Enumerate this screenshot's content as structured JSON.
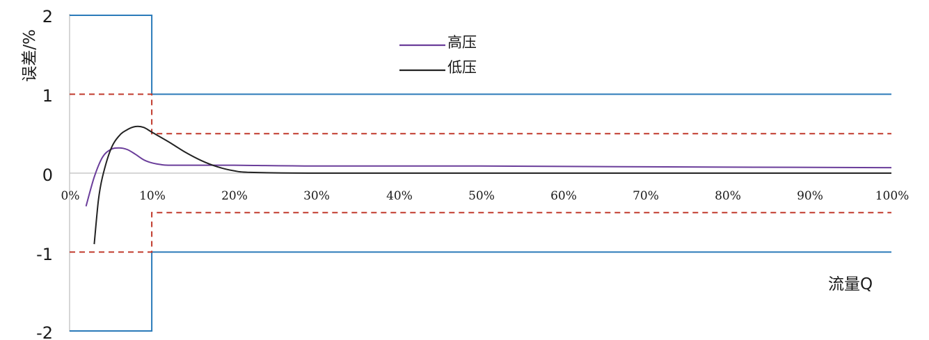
{
  "chart_data": {
    "type": "line",
    "title": "",
    "xlabel": "流量Q",
    "ylabel": "误差/%",
    "xlim": [
      0,
      100
    ],
    "ylim": [
      -2,
      2
    ],
    "x_ticks": [
      "0%",
      "10%",
      "20%",
      "30%",
      "40%",
      "50%",
      "60%",
      "70%",
      "80%",
      "90%",
      "100%"
    ],
    "y_ticks": [
      "2",
      "1",
      "0",
      "-1",
      "-2"
    ],
    "legend": {
      "position": "top-center",
      "entries": [
        {
          "name": "高压",
          "color": "#6a3d9a"
        },
        {
          "name": "低压",
          "color": "#222222"
        }
      ]
    },
    "series": [
      {
        "name": "高压",
        "color": "#6a3d9a",
        "x": [
          2,
          3,
          4,
          5,
          6,
          7,
          8,
          9,
          10,
          11,
          12,
          15,
          20,
          30,
          50,
          70,
          100
        ],
        "y": [
          -0.42,
          -0.05,
          0.2,
          0.3,
          0.32,
          0.3,
          0.24,
          0.17,
          0.13,
          0.11,
          0.1,
          0.1,
          0.1,
          0.09,
          0.09,
          0.08,
          0.07
        ]
      },
      {
        "name": "低压",
        "color": "#222222",
        "x": [
          3,
          3.5,
          4,
          5,
          6,
          7,
          8,
          9,
          10,
          12,
          14,
          16,
          18,
          20,
          22,
          30,
          50,
          100
        ],
        "y": [
          -0.9,
          -0.35,
          -0.05,
          0.3,
          0.47,
          0.55,
          0.59,
          0.58,
          0.52,
          0.4,
          0.27,
          0.16,
          0.08,
          0.03,
          0.01,
          0.0,
          0.0,
          0.0
        ]
      }
    ],
    "limits": [
      {
        "style": "solid",
        "color": "#2a7ab9",
        "x": [
          0,
          10,
          10,
          100
        ],
        "y": [
          2,
          2,
          1,
          1
        ]
      },
      {
        "style": "solid",
        "color": "#2a7ab9",
        "x": [
          0,
          10,
          10,
          100
        ],
        "y": [
          -2,
          -2,
          -1,
          -1
        ]
      },
      {
        "style": "dashed",
        "color": "#c0392b",
        "x": [
          0,
          10,
          10,
          100
        ],
        "y": [
          1,
          1,
          0.5,
          0.5
        ]
      },
      {
        "style": "dashed",
        "color": "#c0392b",
        "x": [
          0,
          10,
          10,
          100
        ],
        "y": [
          -1,
          -1,
          -0.5,
          -0.5
        ]
      }
    ]
  }
}
